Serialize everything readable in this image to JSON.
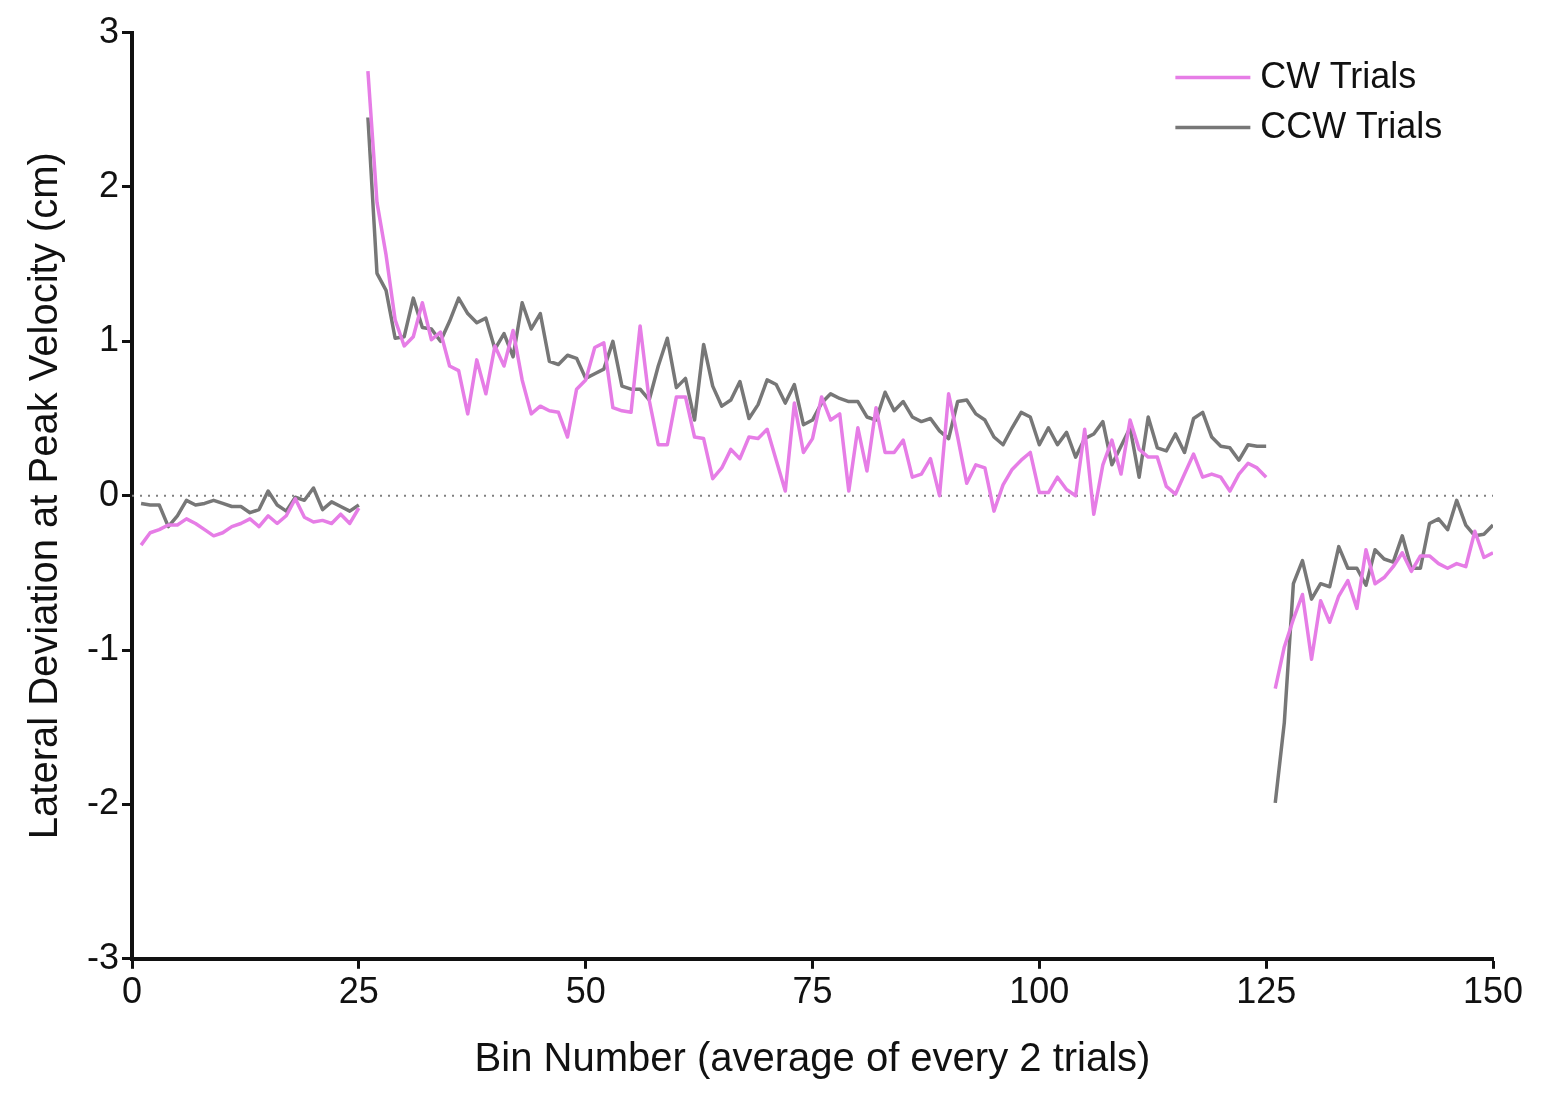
{
  "chart_data": {
    "type": "line",
    "xlabel": "Bin Number (average of every 2 trials)",
    "ylabel": "Lateral Deviation at Peak Velocity (cm)",
    "x": [
      1,
      2,
      3,
      4,
      5,
      6,
      7,
      8,
      9,
      10,
      11,
      12,
      13,
      14,
      15,
      16,
      17,
      18,
      19,
      20,
      21,
      22,
      23,
      24,
      25,
      25.5,
      26,
      27,
      28,
      29,
      30,
      31,
      32,
      33,
      34,
      35,
      36,
      37,
      38,
      39,
      40,
      41,
      42,
      43,
      44,
      45,
      46,
      47,
      48,
      49,
      50,
      51,
      52,
      53,
      54,
      55,
      56,
      57,
      58,
      59,
      60,
      61,
      62,
      63,
      64,
      65,
      66,
      67,
      68,
      69,
      70,
      71,
      72,
      73,
      74,
      75,
      76,
      77,
      78,
      79,
      80,
      81,
      82,
      83,
      84,
      85,
      86,
      87,
      88,
      89,
      90,
      91,
      92,
      93,
      94,
      95,
      96,
      97,
      98,
      99,
      100,
      101,
      102,
      103,
      104,
      105,
      106,
      107,
      108,
      109,
      110,
      111,
      112,
      113,
      114,
      115,
      116,
      117,
      118,
      119,
      120,
      121,
      122,
      123,
      124,
      125,
      125.5,
      126,
      127,
      128,
      129,
      130,
      131,
      132,
      133,
      134,
      135,
      136,
      137,
      138,
      139,
      140,
      141,
      142,
      143,
      144,
      145,
      146,
      147,
      148,
      149,
      150
    ],
    "series": [
      {
        "name": "CW Trials",
        "color": "#e67de6",
        "values": [
          -0.32,
          -0.24,
          -0.22,
          -0.19,
          -0.19,
          -0.15,
          -0.18,
          -0.22,
          -0.26,
          -0.24,
          -0.2,
          -0.18,
          -0.15,
          -0.2,
          -0.13,
          -0.18,
          -0.13,
          -0.02,
          -0.14,
          -0.17,
          -0.16,
          -0.18,
          -0.12,
          -0.18,
          -0.08,
          null,
          2.75,
          1.9,
          1.56,
          1.14,
          0.97,
          1.03,
          1.25,
          1.01,
          1.06,
          0.84,
          0.81,
          0.53,
          0.88,
          0.66,
          0.97,
          0.84,
          1.07,
          0.75,
          0.53,
          0.58,
          0.55,
          0.54,
          0.38,
          0.69,
          0.75,
          0.96,
          0.99,
          0.57,
          0.55,
          0.54,
          1.1,
          0.62,
          0.33,
          0.33,
          0.64,
          0.64,
          0.38,
          0.37,
          0.11,
          0.18,
          0.3,
          0.24,
          0.38,
          0.37,
          0.43,
          0.23,
          0.03,
          0.6,
          0.28,
          0.37,
          0.64,
          0.49,
          0.53,
          0.03,
          0.44,
          0.16,
          0.57,
          0.28,
          0.28,
          0.36,
          0.12,
          0.14,
          0.24,
          0.0,
          0.66,
          0.38,
          0.08,
          0.2,
          0.18,
          -0.1,
          0.07,
          0.17,
          0.23,
          0.28,
          0.02,
          0.02,
          0.12,
          0.04,
          0.0,
          0.43,
          -0.12,
          0.2,
          0.36,
          0.14,
          0.49,
          0.3,
          0.25,
          0.25,
          0.06,
          0.01,
          0.14,
          0.27,
          0.12,
          0.14,
          0.12,
          0.03,
          0.14,
          0.21,
          0.18,
          0.12,
          null,
          -1.25,
          -0.98,
          -0.8,
          -0.64,
          -1.06,
          -0.68,
          -0.82,
          -0.65,
          -0.55,
          -0.73,
          -0.35,
          -0.57,
          -0.53,
          -0.46,
          -0.37,
          -0.49,
          -0.39,
          -0.39,
          -0.44,
          -0.47,
          -0.44,
          -0.46,
          -0.23,
          -0.4,
          -0.37
        ]
      },
      {
        "name": "CCW Trials",
        "color": "#777777",
        "values": [
          -0.05,
          -0.06,
          -0.06,
          -0.2,
          -0.13,
          -0.03,
          -0.06,
          -0.05,
          -0.03,
          -0.05,
          -0.07,
          -0.07,
          -0.11,
          -0.09,
          0.03,
          -0.06,
          -0.1,
          -0.01,
          -0.03,
          0.05,
          -0.09,
          -0.04,
          -0.07,
          -0.1,
          -0.06,
          null,
          2.45,
          1.44,
          1.33,
          1.02,
          1.03,
          1.28,
          1.09,
          1.08,
          1.0,
          1.13,
          1.28,
          1.18,
          1.12,
          1.15,
          0.95,
          1.05,
          0.9,
          1.25,
          1.08,
          1.18,
          0.87,
          0.85,
          0.91,
          0.89,
          0.76,
          0.79,
          0.82,
          1.0,
          0.71,
          0.69,
          0.69,
          0.62,
          0.84,
          1.02,
          0.7,
          0.76,
          0.49,
          0.98,
          0.71,
          0.58,
          0.62,
          0.74,
          0.5,
          0.59,
          0.75,
          0.72,
          0.6,
          0.72,
          0.46,
          0.49,
          0.6,
          0.66,
          0.63,
          0.61,
          0.61,
          0.51,
          0.49,
          0.67,
          0.55,
          0.61,
          0.51,
          0.48,
          0.5,
          0.42,
          0.37,
          0.61,
          0.62,
          0.53,
          0.49,
          0.38,
          0.33,
          0.44,
          0.54,
          0.51,
          0.33,
          0.44,
          0.33,
          0.41,
          0.25,
          0.37,
          0.4,
          0.48,
          0.2,
          0.32,
          0.44,
          0.12,
          0.51,
          0.31,
          0.29,
          0.4,
          0.28,
          0.5,
          0.54,
          0.38,
          0.32,
          0.31,
          0.23,
          0.33,
          0.32,
          0.32,
          null,
          -1.99,
          -1.47,
          -0.57,
          -0.42,
          -0.67,
          -0.57,
          -0.59,
          -0.33,
          -0.47,
          -0.47,
          -0.58,
          -0.35,
          -0.41,
          -0.43,
          -0.26,
          -0.47,
          -0.47,
          -0.18,
          -0.15,
          -0.22,
          -0.03,
          -0.19,
          -0.26,
          -0.25,
          -0.19
        ]
      }
    ],
    "xlim": [
      0,
      150
    ],
    "xticks": [
      0,
      25,
      50,
      75,
      100,
      125,
      150
    ],
    "ylim": [
      -3,
      3
    ],
    "yticks": [
      -3,
      -2,
      -1,
      0,
      1,
      2,
      3
    ],
    "ref_lines": [
      {
        "axis": "y",
        "value": 0,
        "color": "#808080",
        "line_style": "dotted"
      }
    ],
    "grid": false,
    "legend": "top right"
  }
}
